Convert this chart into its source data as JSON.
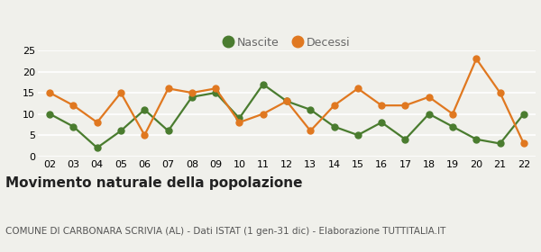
{
  "years": [
    2,
    3,
    4,
    5,
    6,
    7,
    8,
    9,
    10,
    11,
    12,
    13,
    14,
    15,
    16,
    17,
    18,
    19,
    20,
    21,
    22
  ],
  "nascite": [
    10,
    7,
    2,
    6,
    11,
    6,
    14,
    15,
    9,
    17,
    13,
    11,
    7,
    5,
    8,
    4,
    10,
    7,
    4,
    3,
    10
  ],
  "decessi": [
    15,
    12,
    8,
    15,
    5,
    16,
    15,
    16,
    8,
    10,
    13,
    6,
    12,
    16,
    12,
    12,
    14,
    10,
    23,
    15,
    3
  ],
  "nascite_color": "#4a7c2f",
  "decessi_color": "#e07820",
  "title": "Movimento naturale della popolazione",
  "subtitle": "COMUNE DI CARBONARA SCRIVIA (AL) - Dati ISTAT (1 gen-31 dic) - Elaborazione TUTTITALIA.IT",
  "ylim": [
    0,
    25
  ],
  "yticks": [
    0,
    5,
    10,
    15,
    20,
    25
  ],
  "bg_color": "#f0f0eb",
  "grid_color": "#ffffff",
  "legend_nascite": "Nascite",
  "legend_decessi": "Decessi",
  "marker_size": 5,
  "linewidth": 1.6,
  "title_fontsize": 11,
  "subtitle_fontsize": 7.5,
  "tick_fontsize": 8
}
